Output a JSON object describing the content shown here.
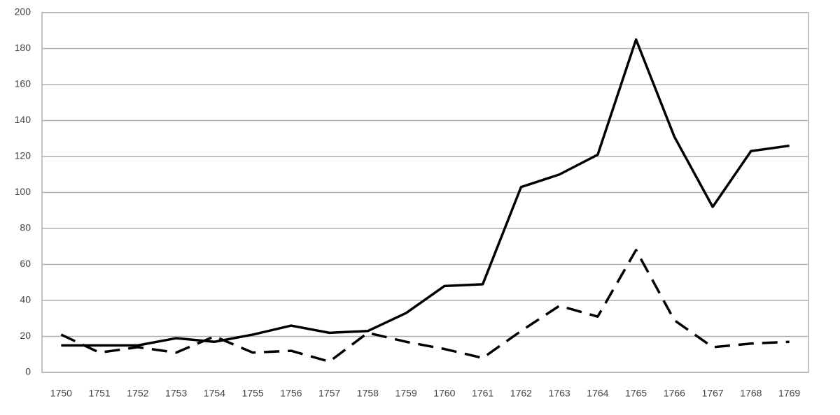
{
  "chart_data": {
    "type": "line",
    "categories": [
      "1750",
      "1751",
      "1752",
      "1753",
      "1754",
      "1755",
      "1756",
      "1757",
      "1758",
      "1759",
      "1760",
      "1761",
      "1762",
      "1763",
      "1764",
      "1765",
      "1766",
      "1767",
      "1768",
      "1769"
    ],
    "series": [
      {
        "color": "#000000",
        "linestyle": "solid",
        "values": [
          15,
          15,
          15,
          19,
          17,
          21,
          26,
          22,
          23,
          33,
          48,
          49,
          103,
          110,
          121,
          185,
          131,
          92,
          123,
          126
        ]
      },
      {
        "color": "#000000",
        "linestyle": "dashed",
        "values": [
          21,
          11,
          14,
          11,
          20,
          11,
          12,
          6,
          22,
          17,
          13,
          8,
          23,
          37,
          31,
          68,
          29,
          14,
          16,
          17
        ]
      }
    ],
    "ylim": [
      0,
      200
    ],
    "yticks": [
      0,
      20,
      40,
      60,
      80,
      100,
      120,
      140,
      160,
      180,
      200
    ],
    "grid": true
  }
}
